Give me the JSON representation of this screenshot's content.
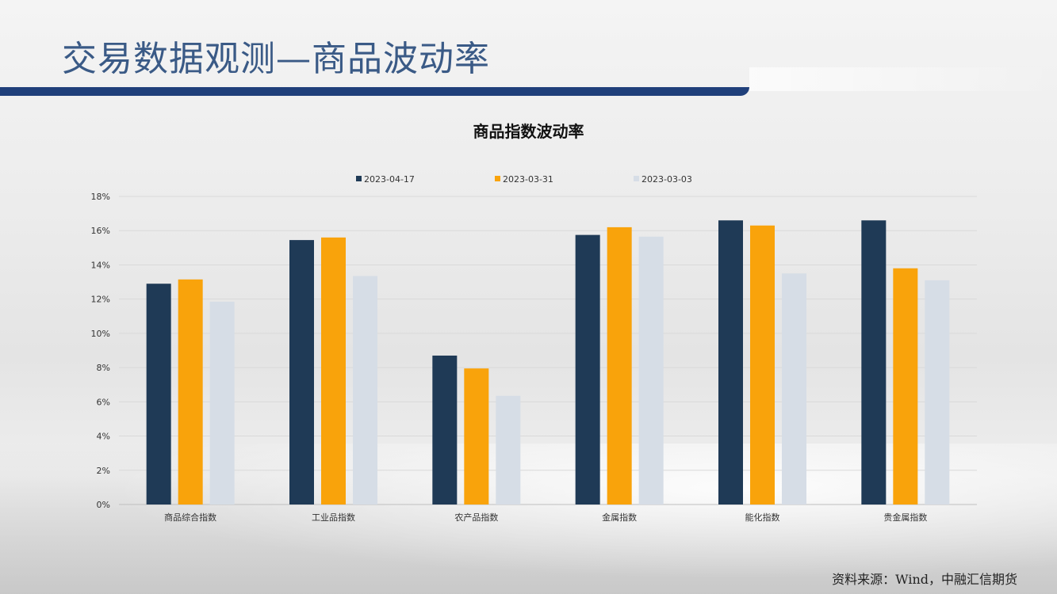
{
  "slide": {
    "title": "交易数据观测—商品波动率",
    "source": "资料来源：Wind，中融汇信期货"
  },
  "colors": {
    "title_text": "#3a5a86",
    "title_bar": "#1f3f7a",
    "series": [
      "#1f3a56",
      "#f9a30b",
      "#d6dde6"
    ]
  },
  "chart_data": {
    "type": "bar",
    "title": "商品指数波动率",
    "categories": [
      "商品综合指数",
      "工业品指数",
      "农产品指数",
      "金属指数",
      "能化指数",
      "贵金属指数"
    ],
    "series": [
      {
        "name": "2023-04-17",
        "values": [
          12.9,
          15.45,
          8.7,
          15.75,
          16.6,
          16.6
        ]
      },
      {
        "name": "2023-03-31",
        "values": [
          13.15,
          15.6,
          7.95,
          16.2,
          16.3,
          13.8
        ]
      },
      {
        "name": "2023-03-03",
        "values": [
          11.85,
          13.35,
          6.35,
          15.65,
          13.5,
          13.1
        ]
      }
    ],
    "ylim": [
      0,
      18
    ],
    "yticks": [
      0,
      2,
      4,
      6,
      8,
      10,
      12,
      14,
      16,
      18
    ],
    "ytick_labels": [
      "0%",
      "2%",
      "4%",
      "6%",
      "8%",
      "10%",
      "12%",
      "14%",
      "16%",
      "18%"
    ],
    "grid": true,
    "legend_position": "top-center"
  }
}
